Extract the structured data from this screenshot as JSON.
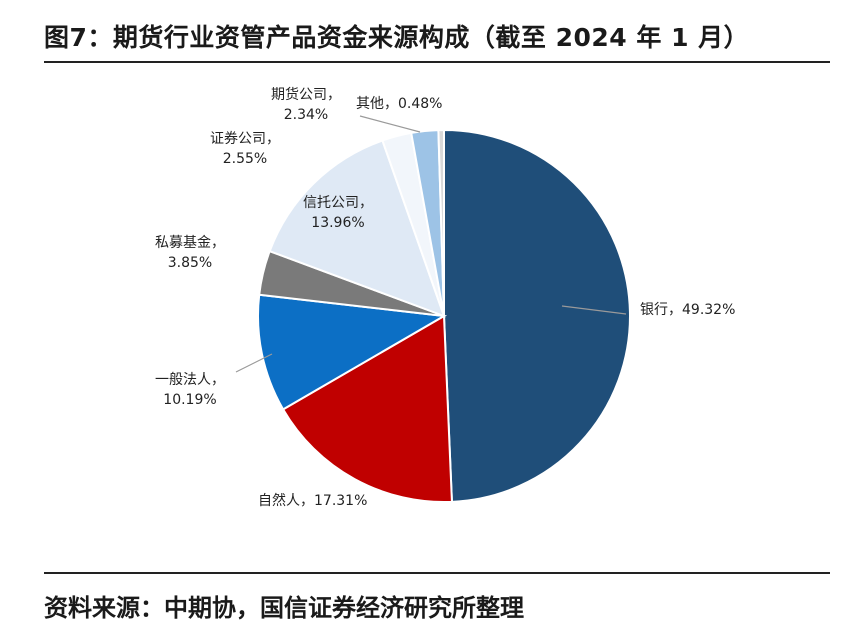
{
  "title": "图7：期货行业资管产品资金来源构成（截至 2024 年 1 月）",
  "source": "资料来源：中期协，国信证券经济研究所整理",
  "chart_data": {
    "type": "pie",
    "title": "图7：期货行业资管产品资金来源构成（截至 2024 年 1 月）",
    "unit": "%",
    "slices": [
      {
        "label": "银行",
        "value": 49.32,
        "display": "49.32%",
        "color": "#1f4e79"
      },
      {
        "label": "自然人",
        "value": 17.31,
        "display": "17.31%",
        "color": "#c00000"
      },
      {
        "label": "一般法人",
        "value": 10.19,
        "display": "10.19%",
        "color": "#0c6fc5"
      },
      {
        "label": "私募基金",
        "value": 3.85,
        "display": "3.85%",
        "color": "#7a7a7a"
      },
      {
        "label": "信托公司",
        "value": 13.96,
        "display": "13.96%",
        "color": "#dfe9f5"
      },
      {
        "label": "证券公司",
        "value": 2.55,
        "display": "2.55%",
        "color": "#f2f6fb"
      },
      {
        "label": "期货公司",
        "value": 2.34,
        "display": "2.34%",
        "color": "#9dc3e6"
      },
      {
        "label": "其他",
        "value": 0.48,
        "display": "0.48%",
        "color": "#d9d9d9"
      }
    ]
  }
}
